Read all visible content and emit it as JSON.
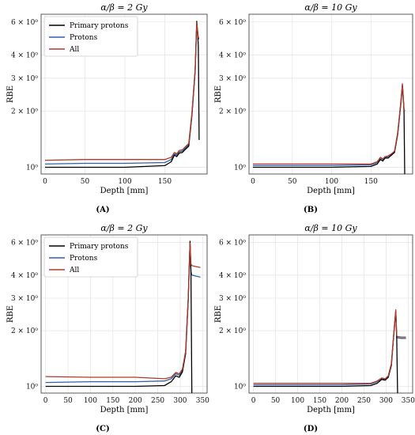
{
  "chart_data": [
    {
      "type": "line",
      "panel_label": "(A)",
      "title": "α/β = 2 Gy",
      "xlabel": "Depth [mm]",
      "ylabel": "RBE",
      "y_scale": "log",
      "xlim": [
        -5,
        203
      ],
      "ylim": [
        0.92,
        6.6
      ],
      "xticks": [
        0,
        50,
        100,
        150
      ],
      "yticks": [
        1,
        2,
        3,
        4,
        6
      ],
      "ytick_labels": [
        "10⁰",
        "2 × 10⁰",
        "3 × 10⁰",
        "4 × 10⁰",
        "6 × 10⁰"
      ],
      "grid": true,
      "legend": {
        "position": "top-left",
        "entries": [
          "Primary protons",
          "Protons",
          "All"
        ]
      },
      "series": [
        {
          "name": "Primary protons",
          "color": "#000000",
          "x": [
            0,
            50,
            100,
            150,
            158,
            162,
            165,
            168,
            172,
            176,
            180,
            184,
            188,
            190,
            192,
            193
          ],
          "y": [
            1.0,
            1.0,
            1.0,
            1.02,
            1.07,
            1.16,
            1.14,
            1.19,
            1.2,
            1.25,
            1.3,
            1.9,
            3.3,
            6.05,
            4.5,
            1.4
          ]
        },
        {
          "name": "Protons",
          "color": "#2f62a6",
          "x": [
            0,
            50,
            100,
            150,
            158,
            162,
            165,
            168,
            172,
            176,
            180,
            184,
            188,
            190,
            192,
            193
          ],
          "y": [
            1.04,
            1.05,
            1.05,
            1.06,
            1.1,
            1.18,
            1.16,
            1.21,
            1.22,
            1.27,
            1.32,
            1.92,
            3.3,
            5.9,
            4.9,
            4.85
          ]
        },
        {
          "name": "All",
          "color": "#b23a2a",
          "x": [
            0,
            50,
            100,
            150,
            158,
            162,
            165,
            168,
            172,
            176,
            180,
            184,
            188,
            190,
            192,
            193
          ],
          "y": [
            1.09,
            1.1,
            1.1,
            1.1,
            1.13,
            1.2,
            1.18,
            1.23,
            1.24,
            1.29,
            1.34,
            1.95,
            3.35,
            5.95,
            4.95,
            4.9
          ]
        }
      ]
    },
    {
      "type": "line",
      "panel_label": "(B)",
      "title": "α/β = 10 Gy",
      "xlabel": "Depth [mm]",
      "ylabel": "RBE",
      "y_scale": "log",
      "xlim": [
        -5,
        203
      ],
      "ylim": [
        0.92,
        6.6
      ],
      "xticks": [
        0,
        50,
        100,
        150
      ],
      "yticks": [
        1,
        2,
        3,
        4,
        6
      ],
      "ytick_labels": [
        "10⁰",
        "2 × 10⁰",
        "3 × 10⁰",
        "4 × 10⁰",
        "6 × 10⁰"
      ],
      "grid": true,
      "series": [
        {
          "name": "Primary protons",
          "color": "#000000",
          "x": [
            0,
            50,
            100,
            150,
            158,
            162,
            165,
            168,
            172,
            176,
            180,
            184,
            188,
            190,
            192,
            193
          ],
          "y": [
            1.0,
            1.0,
            1.0,
            1.01,
            1.04,
            1.1,
            1.08,
            1.12,
            1.12,
            1.16,
            1.2,
            1.5,
            2.2,
            2.75,
            2.0,
            0.9
          ]
        },
        {
          "name": "Protons",
          "color": "#2f62a6",
          "x": [
            0,
            50,
            100,
            150,
            158,
            162,
            165,
            168,
            172,
            176,
            180,
            184,
            188,
            190,
            192,
            193
          ],
          "y": [
            1.02,
            1.02,
            1.02,
            1.03,
            1.06,
            1.12,
            1.1,
            1.13,
            1.14,
            1.17,
            1.21,
            1.52,
            2.2,
            2.75,
            2.05,
            2.0
          ]
        },
        {
          "name": "All",
          "color": "#b23a2a",
          "x": [
            0,
            50,
            100,
            150,
            158,
            162,
            165,
            168,
            172,
            176,
            180,
            184,
            188,
            190,
            192,
            193
          ],
          "y": [
            1.04,
            1.04,
            1.04,
            1.04,
            1.07,
            1.13,
            1.11,
            1.14,
            1.15,
            1.18,
            1.22,
            1.53,
            2.25,
            2.8,
            2.05,
            2.0
          ]
        }
      ]
    },
    {
      "type": "line",
      "panel_label": "(C)",
      "title": "α/β = 2 Gy",
      "xlabel": "Depth [mm]",
      "ylabel": "RBE",
      "y_scale": "log",
      "xlim": [
        -10,
        360
      ],
      "ylim": [
        0.92,
        6.6
      ],
      "xticks": [
        0,
        50,
        100,
        150,
        200,
        250,
        300,
        350
      ],
      "yticks": [
        1,
        2,
        3,
        4,
        6
      ],
      "ytick_labels": [
        "10⁰",
        "2 × 10⁰",
        "3 × 10⁰",
        "4 × 10⁰",
        "6 × 10⁰"
      ],
      "grid": true,
      "legend": {
        "position": "top-left",
        "entries": [
          "Primary protons",
          "Protons",
          "All"
        ]
      },
      "series": [
        {
          "name": "Primary protons",
          "color": "#000000",
          "x": [
            0,
            100,
            200,
            265,
            280,
            290,
            298,
            305,
            312,
            318,
            322,
            324,
            326
          ],
          "y": [
            1.0,
            1.0,
            1.0,
            1.01,
            1.06,
            1.14,
            1.12,
            1.2,
            1.5,
            3.0,
            6.1,
            4.0,
            0.9
          ]
        },
        {
          "name": "Protons",
          "color": "#2f62a6",
          "x": [
            0,
            100,
            200,
            265,
            280,
            290,
            298,
            305,
            312,
            318,
            322,
            324,
            326,
            335,
            345
          ],
          "y": [
            1.05,
            1.06,
            1.06,
            1.07,
            1.1,
            1.17,
            1.15,
            1.22,
            1.52,
            3.0,
            5.9,
            4.2,
            4.0,
            3.95,
            3.9
          ]
        },
        {
          "name": "All",
          "color": "#b23a2a",
          "x": [
            0,
            100,
            200,
            265,
            280,
            290,
            298,
            305,
            312,
            318,
            322,
            324,
            326,
            335,
            345
          ],
          "y": [
            1.13,
            1.12,
            1.12,
            1.1,
            1.12,
            1.19,
            1.17,
            1.24,
            1.55,
            3.05,
            5.95,
            4.6,
            4.5,
            4.45,
            4.4
          ]
        }
      ]
    },
    {
      "type": "line",
      "panel_label": "(D)",
      "title": "α/β = 10 Gy",
      "xlabel": "Depth [mm]",
      "ylabel": "RBE",
      "y_scale": "log",
      "xlim": [
        -10,
        360
      ],
      "ylim": [
        0.92,
        6.6
      ],
      "xticks": [
        0,
        50,
        100,
        150,
        200,
        250,
        300,
        350
      ],
      "yticks": [
        1,
        2,
        3,
        4,
        6
      ],
      "ytick_labels": [
        "10⁰",
        "2 × 10⁰",
        "3 × 10⁰",
        "4 × 10⁰",
        "6 × 10⁰"
      ],
      "grid": true,
      "series": [
        {
          "name": "Primary protons",
          "color": "#000000",
          "x": [
            0,
            100,
            200,
            265,
            280,
            290,
            298,
            305,
            312,
            318,
            322,
            324,
            326
          ],
          "y": [
            1.0,
            1.0,
            1.0,
            1.01,
            1.04,
            1.09,
            1.08,
            1.12,
            1.3,
            2.0,
            2.55,
            1.8,
            0.9
          ]
        },
        {
          "name": "Protons",
          "color": "#2f62a6",
          "x": [
            0,
            100,
            200,
            265,
            280,
            290,
            298,
            305,
            312,
            318,
            322,
            324,
            326,
            335,
            345
          ],
          "y": [
            1.02,
            1.02,
            1.02,
            1.03,
            1.06,
            1.1,
            1.09,
            1.13,
            1.32,
            2.0,
            2.55,
            1.85,
            1.83,
            1.82,
            1.82
          ]
        },
        {
          "name": "All",
          "color": "#b23a2a",
          "x": [
            0,
            100,
            200,
            265,
            280,
            290,
            298,
            305,
            312,
            318,
            322,
            324,
            326,
            335,
            345
          ],
          "y": [
            1.04,
            1.04,
            1.04,
            1.04,
            1.07,
            1.11,
            1.1,
            1.14,
            1.33,
            2.02,
            2.6,
            1.88,
            1.86,
            1.85,
            1.85
          ]
        }
      ]
    }
  ]
}
